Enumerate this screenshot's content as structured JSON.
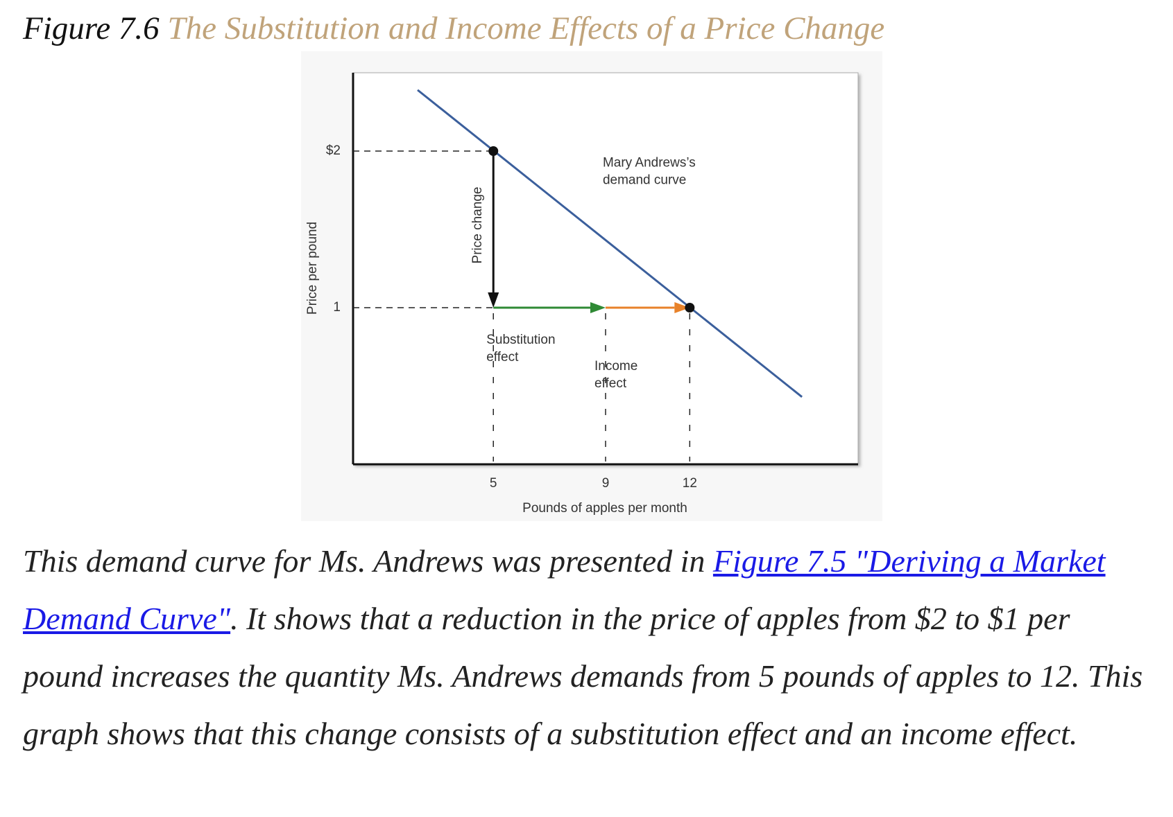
{
  "figure_label": "Figure 7.6",
  "title": "The Substitution and Income Effects of a Price Change",
  "chart_data": {
    "type": "line",
    "x_label": "Pounds of apples per month",
    "y_label": "Price per pound",
    "xlim": [
      0,
      18
    ],
    "ylim": [
      0,
      2.5
    ],
    "xticks": [
      5,
      9,
      12
    ],
    "yticks": [
      1,
      {
        "value": 2,
        "label": "$2"
      }
    ],
    "series": [
      {
        "color": "#3b5f9c",
        "x": [
          2.3,
          16
        ],
        "values": [
          2.39,
          0.43
        ]
      }
    ],
    "points": {
      "color": "#111111",
      "x": [
        5,
        12
      ],
      "values": [
        2,
        1
      ]
    },
    "demand_label": [
      "Mary Andrews’s",
      "demand curve"
    ],
    "effects": [
      {
        "lines": [
          "Price change"
        ],
        "color": "#111111",
        "x": [
          5,
          5
        ],
        "values": [
          2,
          1
        ]
      },
      {
        "lines": [
          "Substitution",
          "effect"
        ],
        "color": "#2f8a35",
        "x": [
          5,
          9
        ],
        "values": [
          1,
          1
        ]
      },
      {
        "lines": [
          "Income",
          "effect"
        ],
        "color": "#e8822a",
        "x": [
          9,
          12
        ],
        "values": [
          1,
          1
        ]
      }
    ]
  },
  "caption": {
    "before": "This demand curve for Ms. Andrews was presented in ",
    "link": "Figure 7.5 \"Deriving a Market Demand Curve\"",
    "after": ". It shows that a reduction in the price of apples from $2 to $1 per pound increases the quantity Ms. Andrews demands from 5 pounds of apples to 12. This graph shows that this change consists of a substitution effect and an income effect."
  }
}
